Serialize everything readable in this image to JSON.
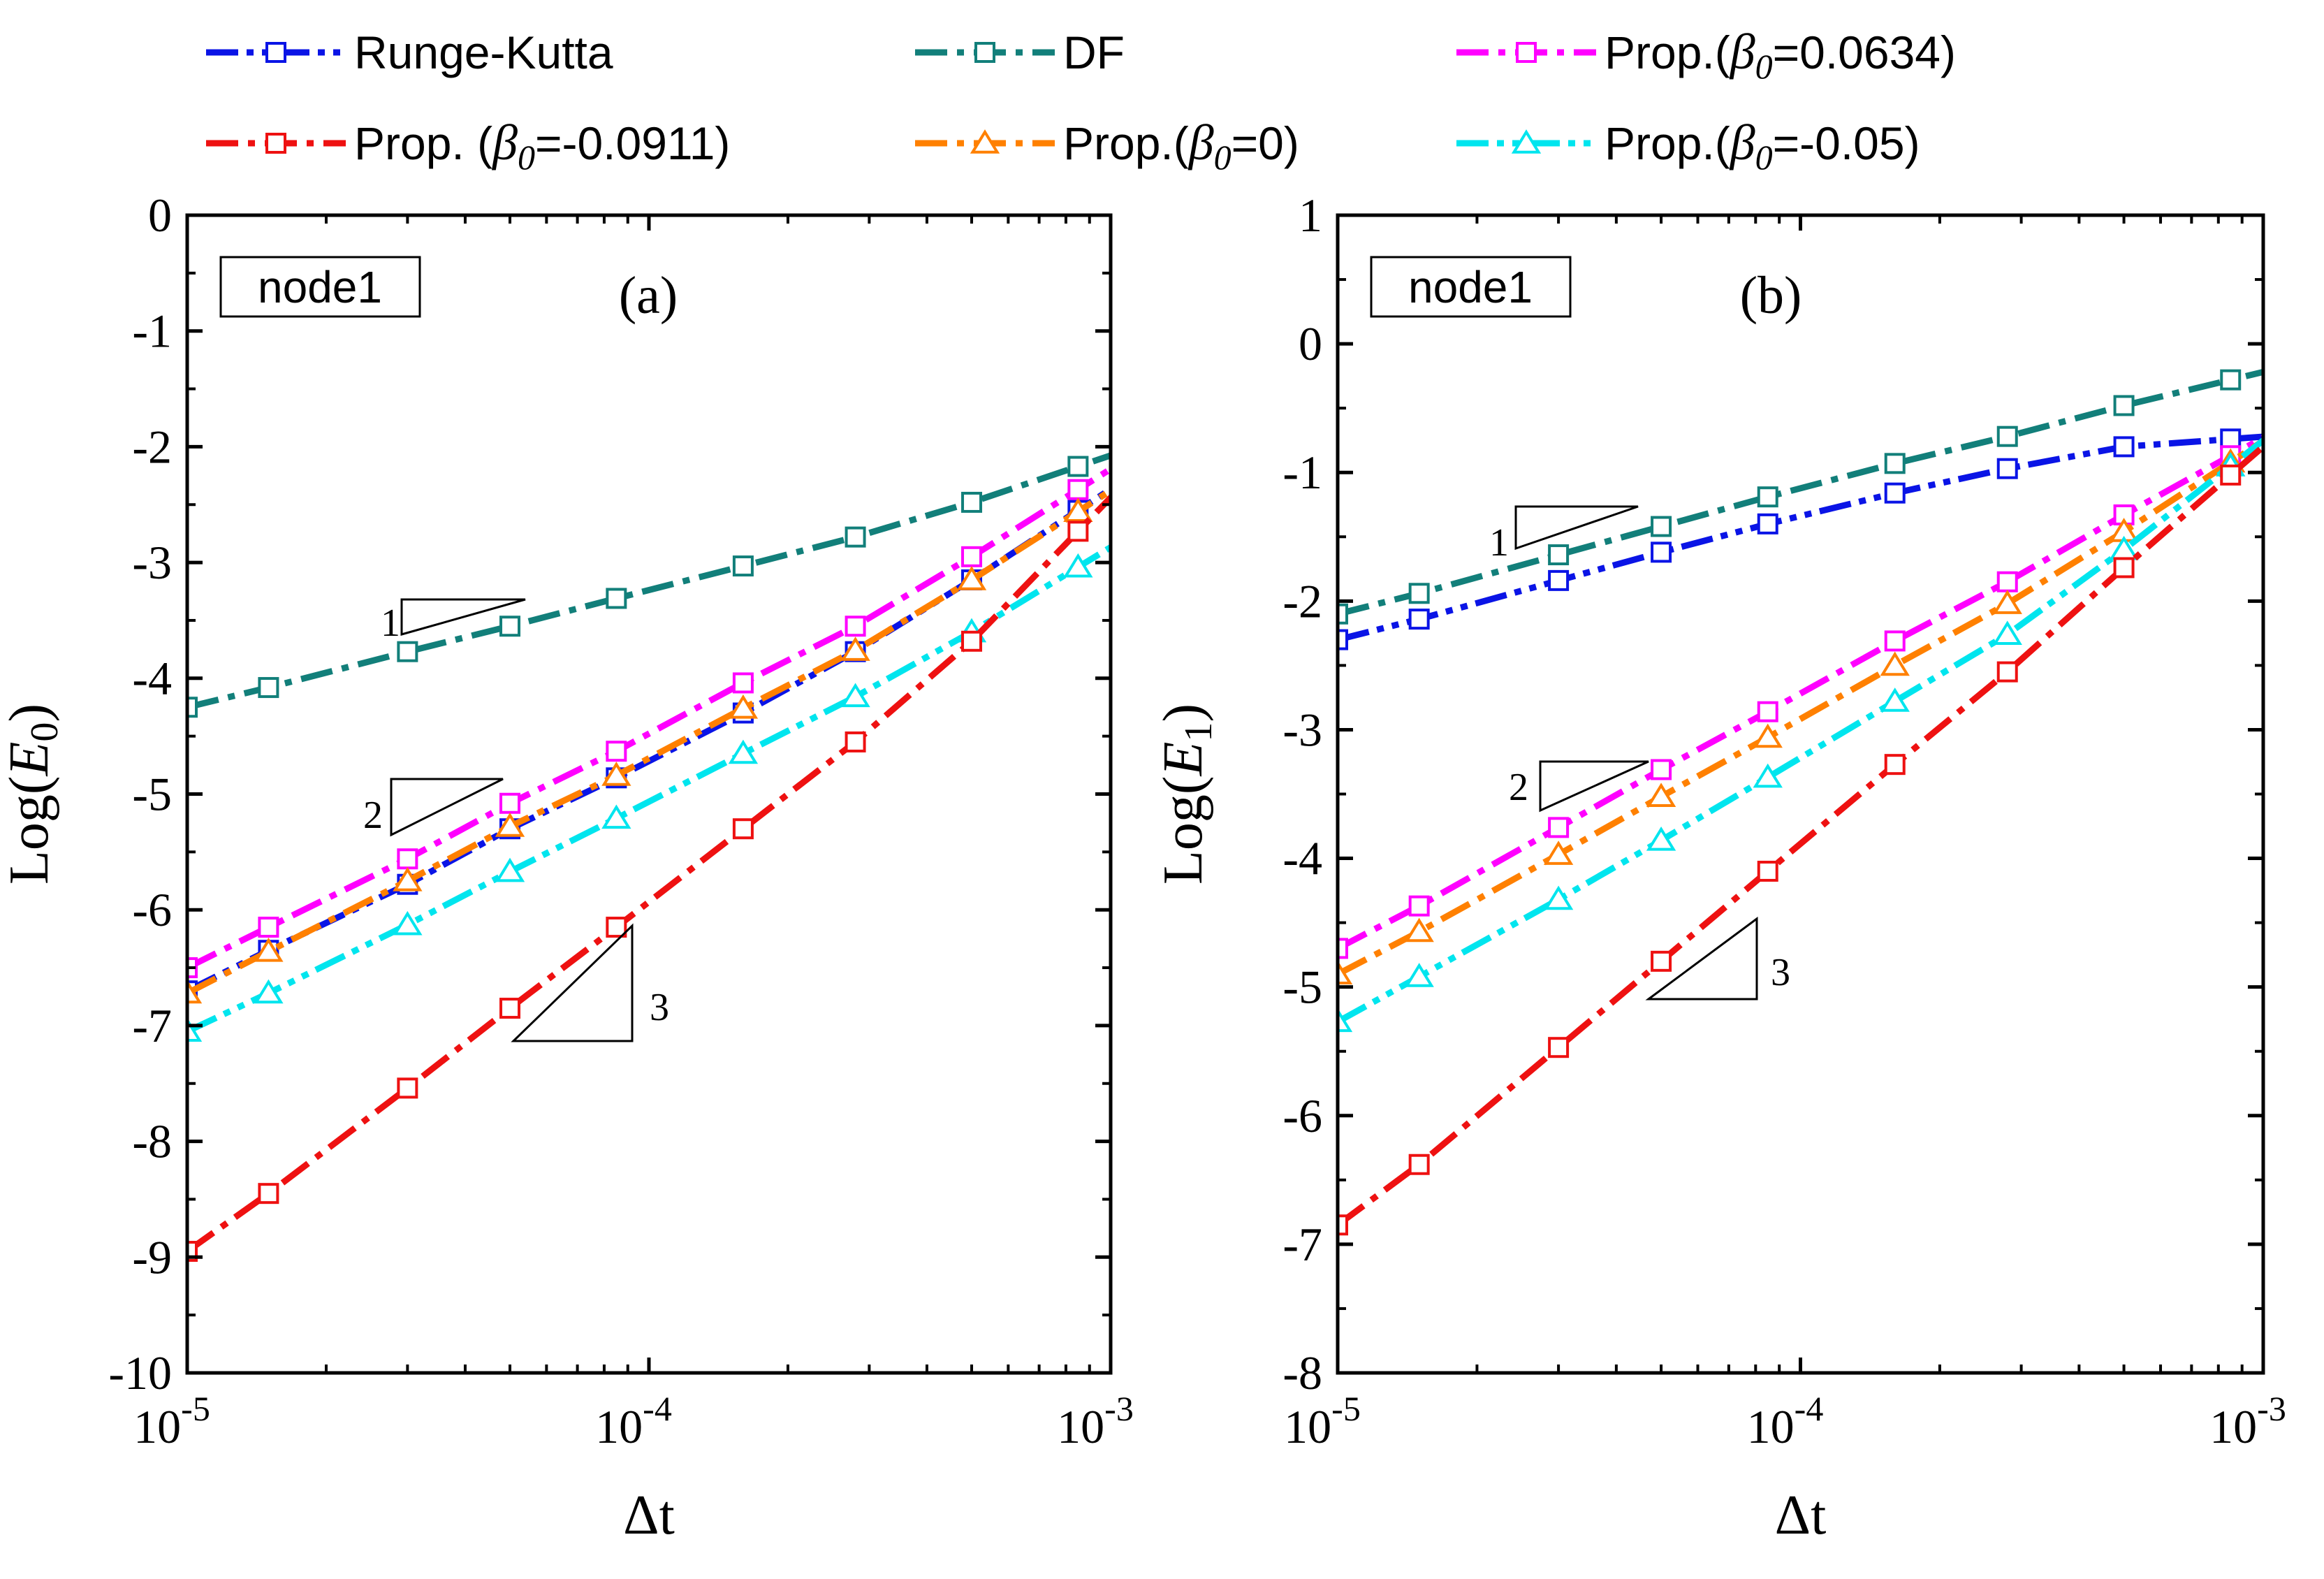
{
  "legend": [
    {
      "label": "Runge-Kutta",
      "color": "#0a14e6",
      "marker": "square",
      "style": "dashdotdot"
    },
    {
      "label": "DF",
      "color": "#127f7a",
      "marker": "square",
      "style": "dashdot"
    },
    {
      "label_prefix": "Prop.(",
      "beta": "β",
      "beta_sub": "0",
      "label_suffix": "=0.0634)",
      "color": "#ff00ff",
      "marker": "square",
      "style": "dashdot"
    },
    {
      "label_prefix": "Prop. (",
      "beta": "β",
      "beta_sub": "0",
      "label_suffix": "=-0.0911)",
      "color": "#ee1111",
      "marker": "square",
      "style": "dashdot"
    },
    {
      "label_prefix": "Prop.(",
      "beta": "β",
      "beta_sub": "0",
      "label_suffix": "=0)",
      "color": "#ff8000",
      "marker": "triangle",
      "style": "dashdot"
    },
    {
      "label_prefix": "Prop.(",
      "beta": "β",
      "beta_sub": "0",
      "label_suffix": "=-0.05)",
      "color": "#00e5ee",
      "marker": "triangle",
      "style": "dashdotdot"
    }
  ],
  "chart_data": [
    {
      "type": "line",
      "panel_label": "(a)",
      "node_label": "node1",
      "title": "",
      "xlabel": "Δt",
      "ylabel_prefix": "Log(",
      "ylabel_var": "E",
      "ylabel_sub": "0",
      "ylabel_suffix": ")",
      "xscale": "log",
      "xlim": [
        1e-05,
        0.001
      ],
      "ylim": [
        -10,
        0
      ],
      "yticks": [
        0,
        -1,
        -2,
        -3,
        -4,
        -5,
        -6,
        -7,
        -8,
        -9,
        -10
      ],
      "xticks": [
        {
          "base": "10",
          "exp": "-5"
        },
        {
          "base": "10",
          "exp": "-4"
        },
        {
          "base": "10",
          "exp": "-3"
        }
      ],
      "x": [
        1e-05,
        1.5e-05,
        3e-05,
        5e-05,
        8.5e-05,
        0.00016,
        0.00028,
        0.0005,
        0.00085
      ],
      "series": [
        {
          "name": "Runge-Kutta",
          "values": [
            -6.7,
            -6.35,
            -5.78,
            -5.3,
            -4.86,
            -4.3,
            -3.77,
            -3.15,
            -2.55
          ]
        },
        {
          "name": "DF",
          "values": [
            -4.25,
            -4.08,
            -3.77,
            -3.55,
            -3.31,
            -3.03,
            -2.78,
            -2.48,
            -2.17
          ]
        },
        {
          "name": "Prop.(β0=0.0634)",
          "values": [
            -6.5,
            -6.15,
            -5.56,
            -5.08,
            -4.63,
            -4.04,
            -3.55,
            -2.95,
            -2.37
          ]
        },
        {
          "name": "Prop. (β0=-0.0911)",
          "values": [
            -8.95,
            -8.45,
            -7.54,
            -6.85,
            -6.15,
            -5.3,
            -4.55,
            -3.68,
            -2.73
          ]
        },
        {
          "name": "Prop.(β0=0)",
          "values": [
            -6.72,
            -6.36,
            -5.75,
            -5.28,
            -4.84,
            -4.26,
            -3.76,
            -3.15,
            -2.56
          ]
        },
        {
          "name": "Prop.(β0=-0.05)",
          "values": [
            -7.05,
            -6.72,
            -6.13,
            -5.67,
            -5.21,
            -4.65,
            -4.16,
            -3.6,
            -3.04
          ]
        }
      ],
      "slope_labels": [
        "1",
        "2",
        "3"
      ]
    },
    {
      "type": "line",
      "panel_label": "(b)",
      "node_label": "node1",
      "title": "",
      "xlabel": "Δt",
      "ylabel_prefix": "Log(",
      "ylabel_var": "E",
      "ylabel_sub": "1",
      "ylabel_suffix": ")",
      "xscale": "log",
      "xlim": [
        1e-05,
        0.001
      ],
      "ylim": [
        -8,
        1
      ],
      "yticks": [
        1,
        0,
        -1,
        -2,
        -3,
        -4,
        -5,
        -6,
        -7,
        -8
      ],
      "xticks": [
        {
          "base": "10",
          "exp": "-5"
        },
        {
          "base": "10",
          "exp": "-4"
        },
        {
          "base": "10",
          "exp": "-3"
        }
      ],
      "x": [
        1e-05,
        1.5e-05,
        3e-05,
        5e-05,
        8.5e-05,
        0.00016,
        0.00028,
        0.0005,
        0.00085
      ],
      "series": [
        {
          "name": "Runge-Kutta",
          "values": [
            -2.3,
            -2.14,
            -1.84,
            -1.62,
            -1.4,
            -1.16,
            -0.97,
            -0.8,
            -0.74
          ]
        },
        {
          "name": "DF",
          "values": [
            -2.1,
            -1.94,
            -1.64,
            -1.42,
            -1.19,
            -0.93,
            -0.72,
            -0.48,
            -0.28
          ]
        },
        {
          "name": "Prop.(β0=0.0634)",
          "values": [
            -4.7,
            -4.37,
            -3.76,
            -3.31,
            -2.86,
            -2.31,
            -1.85,
            -1.33,
            -0.87
          ]
        },
        {
          "name": "Prop. (β0=-0.0911)",
          "values": [
            -6.85,
            -6.38,
            -5.47,
            -4.8,
            -4.1,
            -3.27,
            -2.55,
            -1.74,
            -1.02
          ]
        },
        {
          "name": "Prop.(β0=0)",
          "values": [
            -4.9,
            -4.57,
            -3.97,
            -3.52,
            -3.06,
            -2.5,
            -2.02,
            -1.46,
            -0.92
          ]
        },
        {
          "name": "Prop.(β0=-0.05)",
          "values": [
            -5.27,
            -4.92,
            -4.32,
            -3.86,
            -3.37,
            -2.78,
            -2.26,
            -1.6,
            -0.95
          ]
        }
      ],
      "slope_labels": [
        "1",
        "2",
        "3"
      ]
    }
  ]
}
